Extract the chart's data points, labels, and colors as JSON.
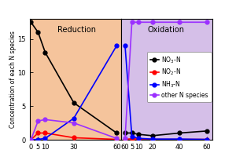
{
  "reduction_x": [
    0,
    5,
    10,
    30,
    60
  ],
  "NO3_reduction": [
    17.5,
    16,
    13,
    5.5,
    1
  ],
  "NO2_reduction": [
    0,
    1,
    1,
    0.3,
    0.05
  ],
  "NH3_reduction": [
    0,
    0.05,
    0.2,
    3.2,
    14
  ],
  "other_reduction": [
    0,
    2.8,
    3.0,
    2.5,
    0.2
  ],
  "oxidation_x": [
    60,
    5,
    10,
    20,
    40,
    60
  ],
  "NO3_oxidation": [
    1,
    1,
    0.8,
    0.6,
    1.0,
    1.3
  ],
  "NO2_oxidation": [
    0.05,
    0.15,
    0.1,
    0.05,
    0.05,
    0.05
  ],
  "NH3_oxidation": [
    14,
    0.5,
    0.2,
    0.1,
    0.1,
    0.05
  ],
  "other_oxidation": [
    0.2,
    17.5,
    17.5,
    17.5,
    17.5,
    17.5
  ],
  "ox_xticks": [
    60,
    5,
    10,
    20,
    40,
    60
  ],
  "ox_xticklabels": [
    "60",
    "5",
    "10",
    "20",
    "40",
    "60"
  ],
  "red_xticks": [
    0,
    5,
    10,
    30,
    60
  ],
  "red_xticklabels": [
    "0",
    "5",
    "10",
    "30",
    "60"
  ],
  "ylim": [
    0,
    18
  ],
  "yticks": [
    0,
    5,
    10,
    15
  ],
  "yticklabels": [
    "0",
    "5",
    "10",
    "15"
  ],
  "reduction_bg": "#f5c49c",
  "oxidation_bg": "#d5bfe8",
  "color_NO3": "#000000",
  "color_NO2": "#ff0000",
  "color_NH3": "#0000ff",
  "color_other": "#9b30ff",
  "ylabel": "Concentration of each N species",
  "title_reduction": "Reduction",
  "title_oxidation": "Oxidation",
  "legend_NO3": "NO$_3$-N",
  "legend_NO2": "NO$_2$-N",
  "legend_NH3": "NH$_3$-N",
  "legend_other": "other N species",
  "marker_size": 3.5,
  "line_width": 1.2
}
